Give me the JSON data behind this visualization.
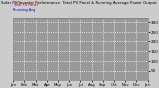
{
  "title": "Solar PV/Inverter Performance  Total PV Panel & Running Average Power Output",
  "bg_color": "#cccccc",
  "plot_bg_color": "#999999",
  "grid_color": "#ffffff",
  "bar_color": "#dd0000",
  "avg_color": "#0000dd",
  "ylim": [
    0,
    320
  ],
  "yticks": [
    50,
    100,
    150,
    200,
    250,
    300
  ],
  "num_points": 600,
  "x_tick_labels": [
    "Jan",
    "Feb",
    "Mar",
    "Apr",
    "May",
    "Jun",
    "Jul",
    "Aug",
    "Sep",
    "Oct",
    "Nov",
    "Dec",
    "Jan"
  ],
  "legend_bar_label": "-- ",
  "legend_avg_label": "-- "
}
